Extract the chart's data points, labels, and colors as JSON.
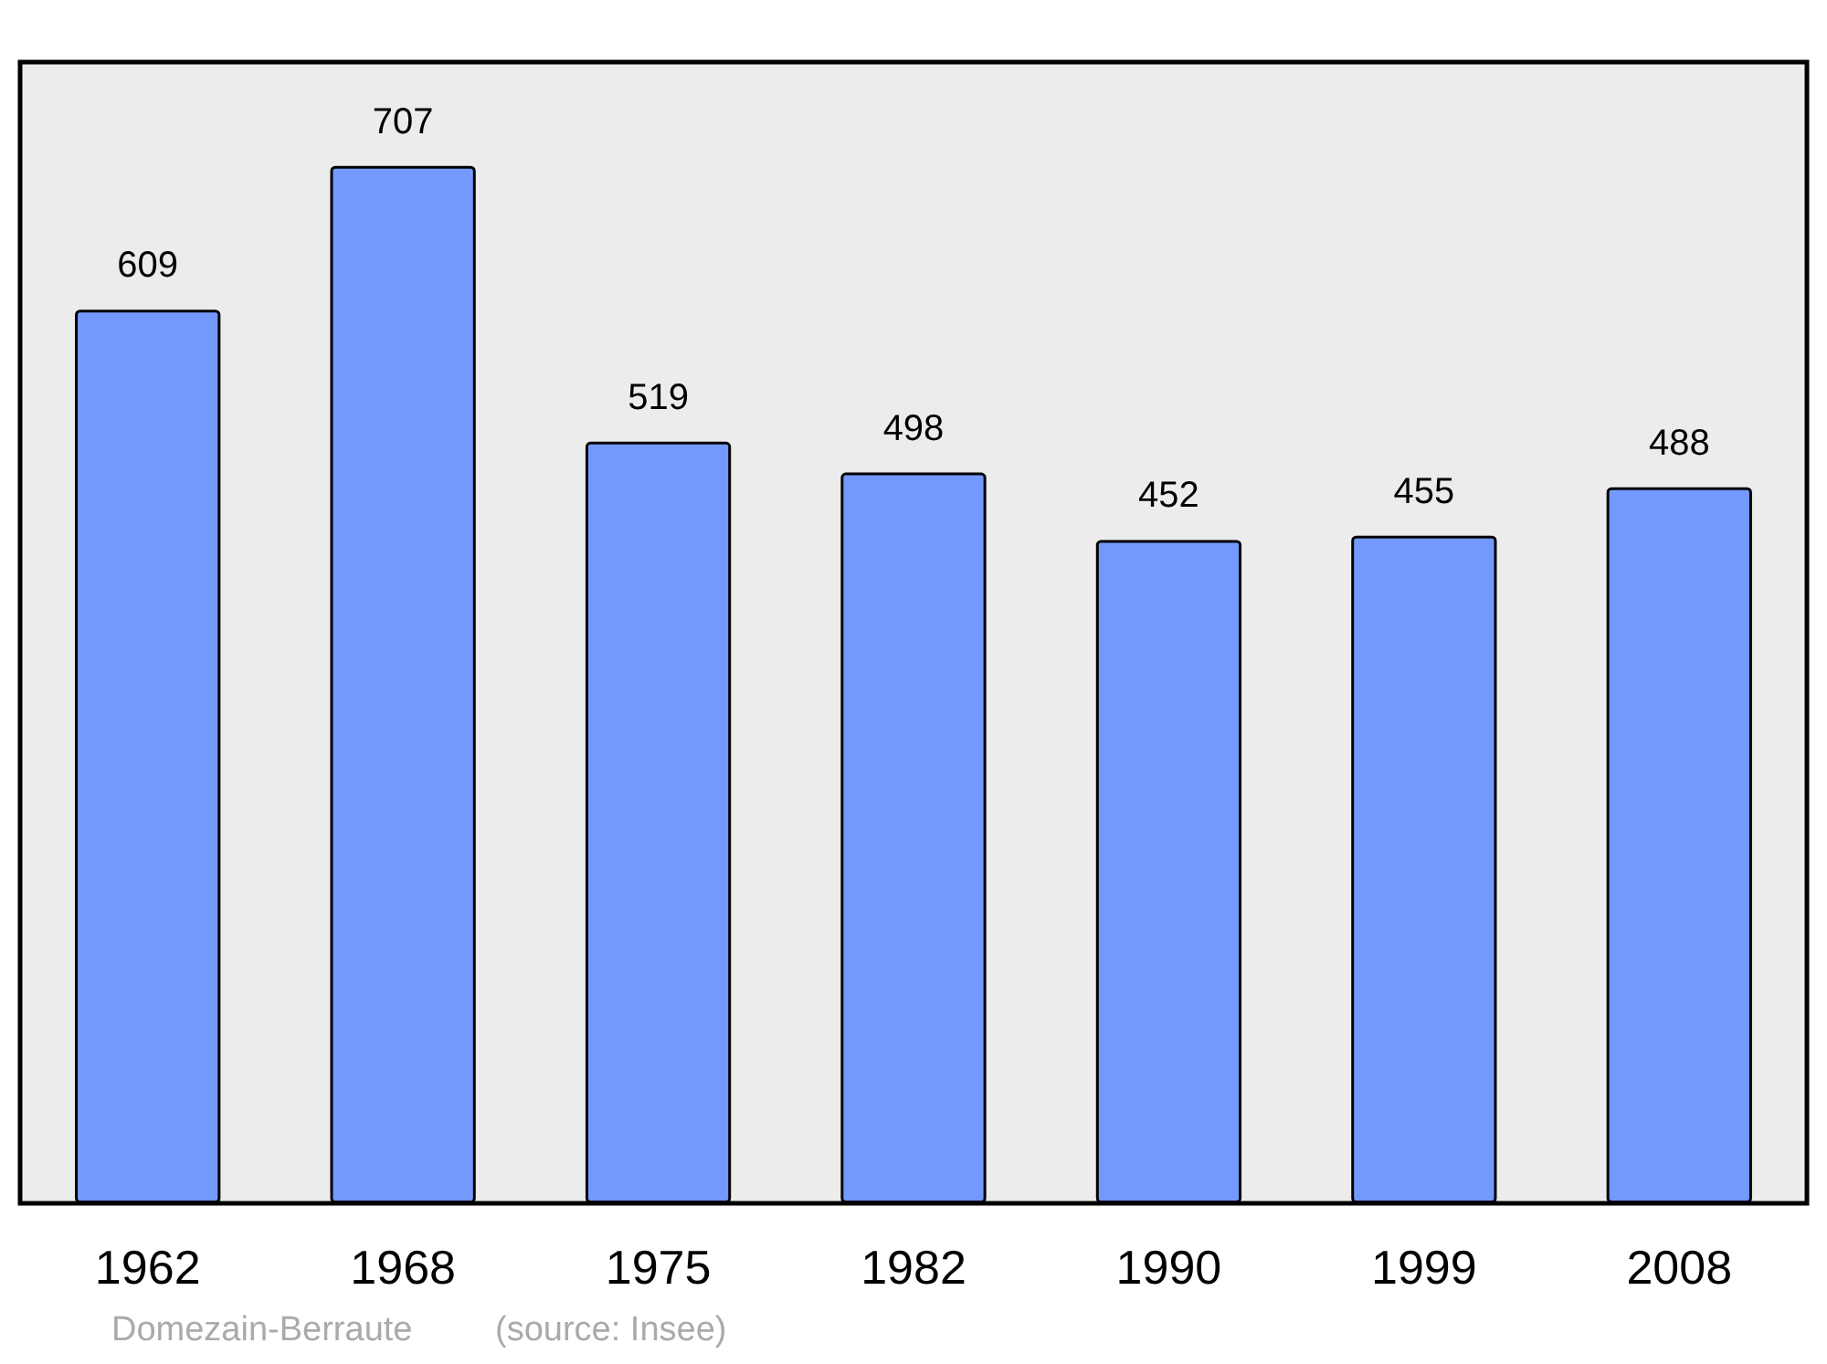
{
  "chart_data": {
    "type": "bar",
    "categories": [
      "1962",
      "1968",
      "1975",
      "1982",
      "1990",
      "1999",
      "2008"
    ],
    "values": [
      609,
      707,
      519,
      498,
      452,
      455,
      488
    ],
    "color": "#7399ff",
    "data_labels": true,
    "annotations": [
      "Domezain-Berraute",
      "(source: Insee)"
    ]
  }
}
